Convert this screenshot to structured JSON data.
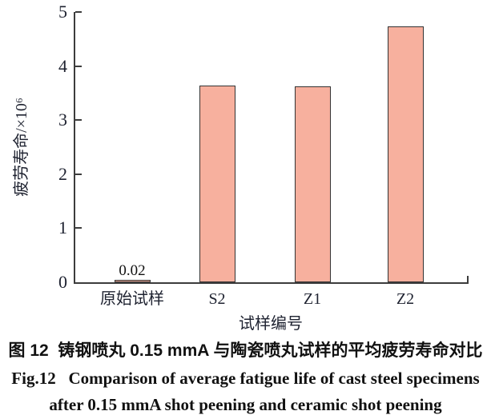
{
  "figure": {
    "caption_zh": "图 12  铸钢喷丸 0.15 mmA 与陶瓷喷丸试样的平均疲劳寿命对比",
    "caption_en_line1": "Fig.12   Comparison of average fatigue life of cast steel specimens",
    "caption_en_line2": "after 0.15 mmA shot peening and ceramic shot peening"
  },
  "chart_data": {
    "type": "bar",
    "categories": [
      "原始试样",
      "S2",
      "Z1",
      "Z2"
    ],
    "values": [
      0.02,
      3.64,
      3.63,
      4.73
    ],
    "annotations": [
      {
        "index": 0,
        "text": "0.02"
      }
    ],
    "title": "",
    "xlabel": "试样编号",
    "ylabel": "疲劳寿命/×10⁶",
    "ylim": [
      0,
      5
    ],
    "yticks": [
      0,
      1,
      2,
      3,
      4,
      5
    ],
    "grid": false,
    "legend": "none",
    "bar_color": "#F7B09E",
    "bar_border_color": "#333333",
    "axis_color": "#3c3c3c",
    "text_color": "#1e2230"
  }
}
